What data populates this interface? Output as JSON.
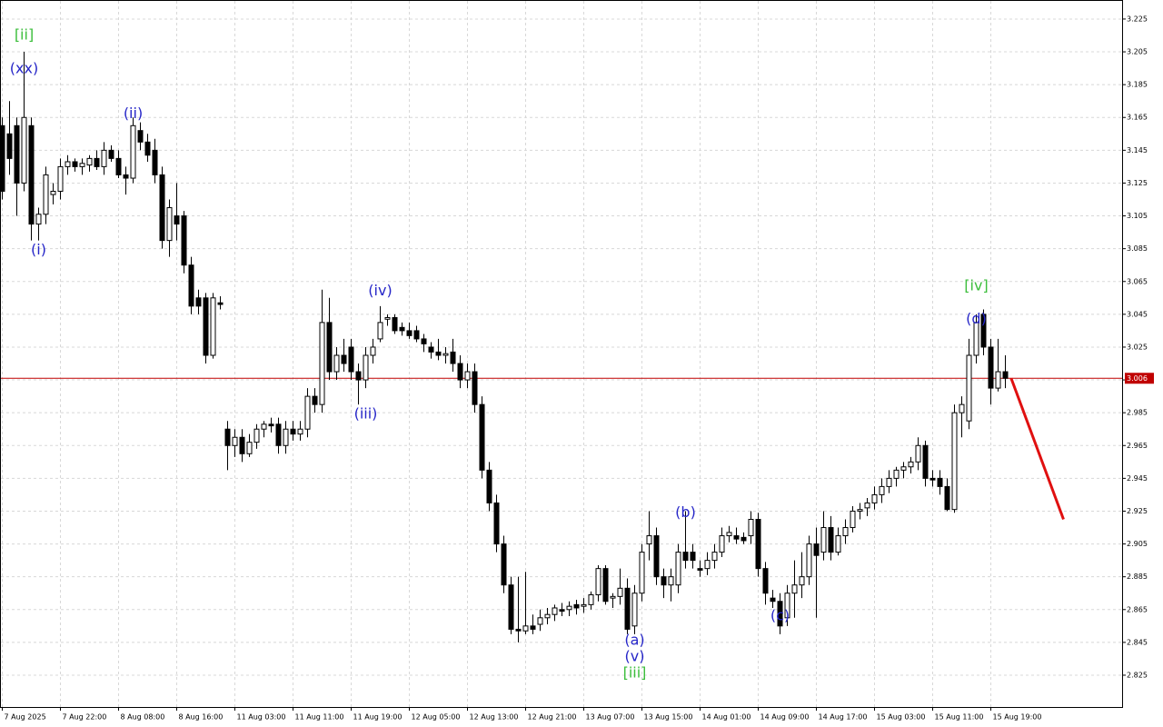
{
  "chart_data": {
    "type": "candlestick",
    "categories": [
      "7 Aug 2025",
      null,
      null,
      null,
      null,
      null,
      null,
      null,
      "7 Aug 22:00",
      null,
      null,
      null,
      null,
      null,
      null,
      null,
      "8 Aug 08:00",
      null,
      null,
      null,
      null,
      null,
      null,
      null,
      "8 Aug 16:00",
      null,
      null,
      null,
      null,
      null,
      null,
      null,
      "11 Aug 03:00",
      null,
      null,
      null,
      null,
      null,
      null,
      null,
      "11 Aug 11:00",
      null,
      null,
      null,
      null,
      null,
      null,
      null,
      "11 Aug 19:00",
      null,
      null,
      null,
      null,
      null,
      null,
      null,
      "12 Aug 05:00",
      null,
      null,
      null,
      null,
      null,
      null,
      null,
      "12 Aug 13:00",
      null,
      null,
      null,
      null,
      null,
      null,
      null,
      "12 Aug 21:00",
      null,
      null,
      null,
      null,
      null,
      null,
      null,
      "13 Aug 07:00",
      null,
      null,
      null,
      null,
      null,
      null,
      null,
      "13 Aug 15:00",
      null,
      null,
      null,
      null,
      null,
      null,
      null,
      "14 Aug 01:00",
      null,
      null,
      null,
      null,
      null,
      null,
      null,
      "14 Aug 09:00",
      null,
      null,
      null,
      null,
      null,
      null,
      null,
      "14 Aug 17:00",
      null,
      null,
      null,
      null,
      null,
      null,
      null,
      "15 Aug 03:00",
      null,
      null,
      null,
      null,
      null,
      null,
      null,
      "15 Aug 11:00",
      null,
      null,
      null,
      null,
      null,
      null,
      null,
      "15 Aug 19:00",
      null,
      null
    ],
    "open": [
      3.16,
      3.155,
      3.16,
      3.125,
      3.16,
      3.1,
      3.106,
      3.118,
      3.12,
      3.135,
      3.138,
      3.135,
      3.136,
      3.14,
      3.135,
      3.145,
      3.14,
      3.13,
      3.128,
      3.157,
      3.15,
      3.145,
      3.13,
      3.09,
      3.105,
      3.105,
      3.075,
      3.055,
      3.055,
      3.02,
      3.052,
      2.975,
      2.965,
      2.97,
      2.96,
      2.967,
      2.975,
      2.978,
      2.978,
      2.965,
      2.975,
      2.972,
      2.975,
      2.995,
      2.99,
      3.04,
      3.01,
      3.02,
      3.025,
      3.01,
      3.005,
      3.02,
      3.03,
      3.042,
      3.043,
      3.037,
      3.035,
      3.035,
      3.03,
      3.025,
      3.022,
      3.02,
      3.022,
      3.015,
      3.005,
      3.01,
      2.99,
      2.95,
      2.93,
      2.905,
      2.88,
      2.853,
      2.852,
      2.855,
      2.856,
      2.86,
      2.862,
      2.865,
      2.865,
      2.868,
      2.867,
      2.868,
      2.874,
      2.89,
      2.872,
      2.873,
      2.878,
      2.855,
      2.875,
      2.905,
      2.91,
      2.885,
      2.88,
      2.88,
      2.9,
      2.9,
      2.89,
      2.89,
      2.895,
      2.9,
      2.91,
      2.91,
      2.909,
      2.91,
      2.92,
      2.89,
      2.872,
      2.87,
      2.86,
      2.875,
      2.88,
      2.885,
      2.905,
      2.9,
      2.915,
      2.9,
      2.91,
      2.915,
      2.925,
      2.927,
      2.93,
      2.935,
      2.94,
      2.945,
      2.95,
      2.952,
      2.955,
      2.965,
      2.945,
      2.945,
      2.94,
      2.926,
      2.985,
      2.98,
      3.02,
      3.045,
      3.025,
      3.0,
      3.01
    ],
    "high": [
      3.165,
      3.175,
      3.165,
      3.205,
      3.165,
      3.11,
      3.135,
      3.125,
      3.14,
      3.142,
      3.14,
      3.14,
      3.142,
      3.145,
      3.15,
      3.148,
      3.145,
      3.135,
      3.165,
      3.162,
      3.155,
      3.152,
      3.135,
      3.115,
      3.125,
      3.108,
      3.08,
      3.06,
      3.058,
      3.058,
      3.056,
      2.98,
      2.975,
      2.975,
      2.972,
      2.978,
      2.98,
      2.982,
      2.982,
      2.98,
      2.98,
      2.98,
      3.0,
      3.0,
      3.06,
      3.055,
      3.025,
      3.03,
      3.03,
      3.015,
      3.025,
      3.03,
      3.05,
      3.045,
      3.045,
      3.04,
      3.04,
      3.038,
      3.033,
      3.028,
      3.03,
      3.025,
      3.03,
      3.02,
      3.015,
      3.015,
      2.995,
      2.955,
      2.935,
      2.91,
      2.885,
      2.885,
      2.888,
      2.862,
      2.865,
      2.866,
      2.868,
      2.869,
      2.87,
      2.871,
      2.872,
      2.876,
      2.892,
      2.892,
      2.875,
      2.89,
      2.884,
      2.88,
      2.905,
      2.925,
      2.915,
      2.89,
      2.89,
      2.905,
      2.925,
      2.905,
      2.895,
      2.9,
      2.905,
      2.915,
      2.916,
      2.915,
      2.912,
      2.925,
      2.924,
      2.894,
      2.877,
      2.875,
      2.88,
      2.895,
      2.9,
      2.91,
      2.915,
      2.925,
      2.922,
      2.915,
      2.92,
      2.928,
      2.93,
      2.933,
      2.94,
      2.945,
      2.95,
      2.952,
      2.955,
      2.958,
      2.97,
      2.968,
      2.95,
      2.95,
      2.945,
      2.99,
      2.995,
      3.03,
      3.045,
      3.048,
      3.03,
      3.03,
      3.02
    ],
    "low": [
      3.115,
      3.13,
      3.105,
      3.12,
      3.09,
      3.09,
      3.1,
      3.112,
      3.115,
      3.13,
      3.132,
      3.13,
      3.132,
      3.133,
      3.13,
      3.138,
      3.128,
      3.118,
      3.125,
      3.145,
      3.138,
      3.125,
      3.085,
      3.08,
      3.09,
      3.07,
      3.045,
      3.045,
      3.015,
      3.018,
      3.048,
      2.95,
      2.958,
      2.955,
      2.958,
      2.963,
      2.97,
      2.973,
      2.96,
      2.96,
      2.968,
      2.968,
      2.97,
      2.985,
      2.985,
      3.005,
      3.005,
      3.01,
      3.005,
      2.99,
      3.0,
      3.015,
      3.028,
      3.038,
      3.033,
      3.032,
      3.03,
      3.028,
      3.022,
      3.018,
      3.017,
      3.015,
      3.01,
      3.0,
      3.0,
      2.985,
      2.945,
      2.925,
      2.9,
      2.875,
      2.85,
      2.845,
      2.85,
      2.85,
      2.852,
      2.856,
      2.858,
      2.861,
      2.861,
      2.862,
      2.863,
      2.865,
      2.87,
      2.868,
      2.866,
      2.868,
      2.85,
      2.85,
      2.87,
      2.895,
      2.88,
      2.872,
      2.87,
      2.875,
      2.89,
      2.89,
      2.885,
      2.886,
      2.89,
      2.897,
      2.906,
      2.905,
      2.905,
      2.905,
      2.885,
      2.868,
      2.866,
      2.85,
      2.855,
      2.86,
      2.872,
      2.88,
      2.86,
      2.895,
      2.895,
      2.898,
      2.905,
      2.912,
      2.92,
      2.922,
      2.926,
      2.93,
      2.936,
      2.94,
      2.945,
      2.948,
      2.95,
      2.94,
      2.94,
      2.935,
      2.925,
      2.924,
      2.97,
      2.975,
      3.015,
      3.02,
      2.99,
      2.998,
      3.0
    ],
    "close": [
      3.12,
      3.14,
      3.125,
      3.165,
      3.1,
      3.106,
      3.13,
      3.12,
      3.135,
      3.138,
      3.135,
      3.137,
      3.14,
      3.135,
      3.145,
      3.14,
      3.13,
      3.128,
      3.16,
      3.15,
      3.142,
      3.13,
      3.09,
      3.11,
      3.1,
      3.075,
      3.05,
      3.05,
      3.02,
      3.055,
      3.051,
      2.965,
      2.97,
      2.96,
      2.967,
      2.975,
      2.978,
      2.977,
      2.965,
      2.975,
      2.972,
      2.975,
      2.995,
      2.99,
      3.04,
      3.01,
      3.02,
      3.015,
      3.01,
      3.005,
      3.02,
      3.025,
      3.04,
      3.043,
      3.035,
      3.035,
      3.032,
      3.03,
      3.027,
      3.022,
      3.02,
      3.021,
      3.015,
      3.005,
      3.01,
      2.99,
      2.95,
      2.93,
      2.905,
      2.88,
      2.853,
      2.852,
      2.855,
      2.853,
      2.86,
      2.862,
      2.866,
      2.864,
      2.867,
      2.866,
      2.868,
      2.874,
      2.89,
      2.87,
      2.873,
      2.878,
      2.853,
      2.875,
      2.9,
      2.91,
      2.885,
      2.88,
      2.885,
      2.9,
      2.895,
      2.895,
      2.889,
      2.895,
      2.9,
      2.91,
      2.912,
      2.908,
      2.907,
      2.92,
      2.89,
      2.875,
      2.87,
      2.855,
      2.875,
      2.88,
      2.885,
      2.905,
      2.898,
      2.915,
      2.9,
      2.91,
      2.915,
      2.925,
      2.926,
      2.93,
      2.935,
      2.94,
      2.945,
      2.95,
      2.952,
      2.955,
      2.965,
      2.945,
      2.944,
      2.94,
      2.926,
      2.985,
      2.99,
      3.02,
      3.04,
      3.025,
      3.0,
      3.01,
      3.006
    ],
    "ylim": [
      2.8056,
      3.2366
    ],
    "yticks": [
      2.825,
      2.845,
      2.865,
      2.885,
      2.905,
      2.925,
      2.945,
      2.965,
      2.985,
      3.005,
      3.025,
      3.045,
      3.065,
      3.085,
      3.105,
      3.125,
      3.145,
      3.165,
      3.185,
      3.205,
      3.225
    ],
    "grid": true,
    "up_color": "#ffffff",
    "down_color": "#000000",
    "current_price": 3.006,
    "current_price_color": "#c00000",
    "forecast": {
      "x": [
        138.8,
        146
      ],
      "y": [
        3.006,
        2.92
      ],
      "color": "#e01010"
    },
    "annotations": [
      {
        "text": "[ii]",
        "x": 3,
        "y": 3.215,
        "color": "#3cbe3c"
      },
      {
        "text": "(xx)",
        "x": 3,
        "y": 3.1945,
        "color": "#2626c8"
      },
      {
        "text": "(i)",
        "x": 5,
        "y": 3.084,
        "color": "#2626c8"
      },
      {
        "text": "(ii)",
        "x": 18,
        "y": 3.167,
        "color": "#2626c8"
      },
      {
        "text": "(iv)",
        "x": 52,
        "y": 3.059,
        "color": "#2626c8"
      },
      {
        "text": "(iii)",
        "x": 50,
        "y": 2.984,
        "color": "#2626c8"
      },
      {
        "text": "(b)",
        "x": 94,
        "y": 2.924,
        "color": "#2626c8"
      },
      {
        "text": "(a)",
        "x": 87,
        "y": 2.846,
        "color": "#2626c8"
      },
      {
        "text": "(v)",
        "x": 87,
        "y": 2.836,
        "color": "#2626c8"
      },
      {
        "text": "[iii]",
        "x": 87,
        "y": 2.826,
        "color": "#3cbe3c"
      },
      {
        "text": "(c)",
        "x": 107,
        "y": 2.861,
        "color": "#2626c8"
      },
      {
        "text": "[iv]",
        "x": 134,
        "y": 3.062,
        "color": "#3cbe3c"
      },
      {
        "text": "(d)",
        "x": 134,
        "y": 3.042,
        "color": "#2626c8"
      }
    ]
  }
}
